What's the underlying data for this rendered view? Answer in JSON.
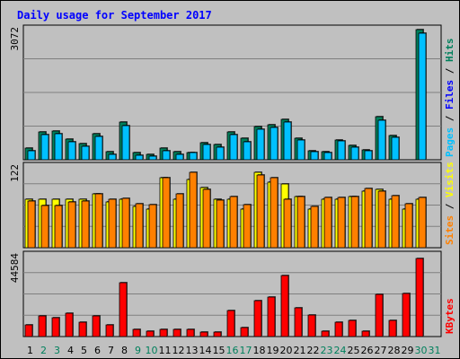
{
  "chart_data": {
    "type": "bar",
    "title": "Daily usage for September 2017",
    "categories": [
      "1",
      "2",
      "3",
      "4",
      "5",
      "6",
      "7",
      "8",
      "9",
      "10",
      "11",
      "12",
      "13",
      "14",
      "15",
      "16",
      "17",
      "18",
      "19",
      "20",
      "21",
      "22",
      "23",
      "24",
      "25",
      "26",
      "27",
      "28",
      "29",
      "30",
      "31"
    ],
    "weekend_days": [
      "2",
      "3",
      "9",
      "10",
      "16",
      "17",
      "23",
      "24",
      "30",
      "31"
    ],
    "colors": {
      "hits": "#00805c",
      "files": "#00c0ff",
      "visits": "#ffff00",
      "sites": "#ff8000",
      "kbytes": "#ff0000",
      "weekday_label": "#000000",
      "weekend_label": "#00805c"
    },
    "panels": [
      {
        "key": "top",
        "ymax": 3072,
        "ymax_label": "3072",
        "right_labels": [
          {
            "text": "Hits",
            "color": "#00805c"
          },
          {
            "text": "Files",
            "color": "#0000ff"
          },
          {
            "text": "Pages",
            "color": "#00c0ff"
          }
        ],
        "series": [
          {
            "name": "Hits",
            "color": "#00805c",
            "values": [
              270,
              660,
              670,
              480,
              370,
              600,
              180,
              880,
              160,
              120,
              280,
              180,
              170,
              400,
              360,
              660,
              500,
              780,
              820,
              940,
              500,
              220,
              190,
              470,
              330,
              240,
              1020,
              560,
              0,
              3050,
              0
            ]
          },
          {
            "name": "Files",
            "color": "#00c0ff",
            "values": [
              200,
              580,
              600,
              420,
              310,
              540,
              120,
              810,
              110,
              90,
              200,
              120,
              160,
              350,
              300,
              580,
              420,
              710,
              760,
              880,
              460,
              180,
              160,
              440,
              290,
              200,
              920,
              520,
              0,
              2960,
              0
            ]
          }
        ]
      },
      {
        "key": "mid",
        "ymax": 122,
        "ymax_label": "122",
        "right_labels": [
          {
            "text": "Visits",
            "color": "#ffff00"
          },
          {
            "text": "Sites",
            "color": "#ff8000"
          }
        ],
        "series": [
          {
            "name": "Visits",
            "color": "#ffff00",
            "values": [
              72,
              72,
              72,
              72,
              72,
              80,
              68,
              72,
              62,
              58,
              105,
              72,
              102,
              90,
              73,
              72,
              58,
              113,
              98,
              95,
              77,
              57,
              73,
              73,
              77,
              84,
              87,
              73,
              58,
              73,
              0
            ]
          },
          {
            "name": "Sites",
            "color": "#ff8000",
            "values": [
              70,
              63,
              63,
              68,
              70,
              81,
              72,
              74,
              66,
              65,
              105,
              81,
              113,
              87,
              71,
              77,
              64,
              108,
              105,
              72,
              77,
              61,
              75,
              75,
              77,
              88,
              85,
              78,
              66,
              75,
              0
            ]
          }
        ]
      },
      {
        "key": "bot",
        "ymax": 44584,
        "ymax_label": "44584",
        "right_labels": [
          {
            "text": "KBytes",
            "color": "#ff0000"
          }
        ],
        "series": [
          {
            "name": "KBytes",
            "color": "#ff0000",
            "values": [
              6500,
              11200,
              10300,
              12800,
              7600,
              11500,
              6600,
              29500,
              3700,
              3000,
              4000,
              3700,
              3900,
              2500,
              2300,
              14200,
              4700,
              19500,
              21500,
              33500,
              15500,
              11900,
              3100,
              7700,
              9000,
              3000,
              23000,
              9000,
              23500,
              42500,
              0
            ]
          }
        ]
      }
    ]
  }
}
